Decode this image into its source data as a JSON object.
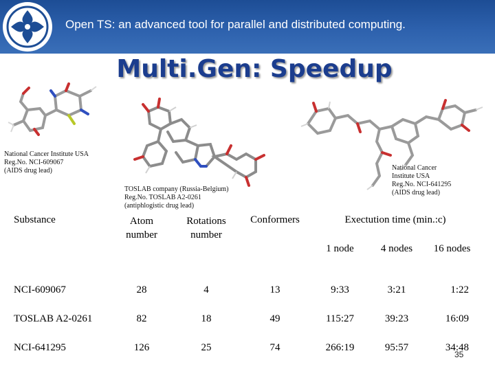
{
  "header": {
    "title": "Open TS: an advanced tool for parallel and distributed computing."
  },
  "slide": {
    "title": "Multi.Gen: Speedup",
    "page_number": "35"
  },
  "notes": {
    "nci609067": "National Cancer Institute USA\nReg.No. NCI-609067\n(AIDS drug lead)",
    "toslab": "TOSLAB company (Russia-Belgium)\nReg.No. TOSLAB A2-0261\n(antiphlogistic drug lead)",
    "nci641295": "National Cancer\nInstitute USA\nReg.No. NCI-641295\n(AIDS drug lead)"
  },
  "table": {
    "headers": {
      "substance": "Substance",
      "atom": "Atom\nnumber",
      "rotations": "Rotations\nnumber",
      "conformers": "Conformers",
      "exec": "Exectution time (min.:c)",
      "node1": "1 node",
      "node4": "4 nodes",
      "node16": "16 nodes"
    },
    "rows": [
      {
        "substance": "NCI-609067",
        "atom": "28",
        "rotations": "4",
        "conformers": "13",
        "t1": "9:33",
        "t4": "3:21",
        "t16": "1:22"
      },
      {
        "substance": "TOSLAB A2-0261",
        "atom": "82",
        "rotations": "18",
        "conformers": "49",
        "t1": "115:27",
        "t4": "39:23",
        "t16": "16:09"
      },
      {
        "substance": "NCI-641295",
        "atom": "126",
        "rotations": "25",
        "conformers": "74",
        "t1": "266:19",
        "t4": "95:57",
        "t16": "34:48"
      }
    ]
  }
}
